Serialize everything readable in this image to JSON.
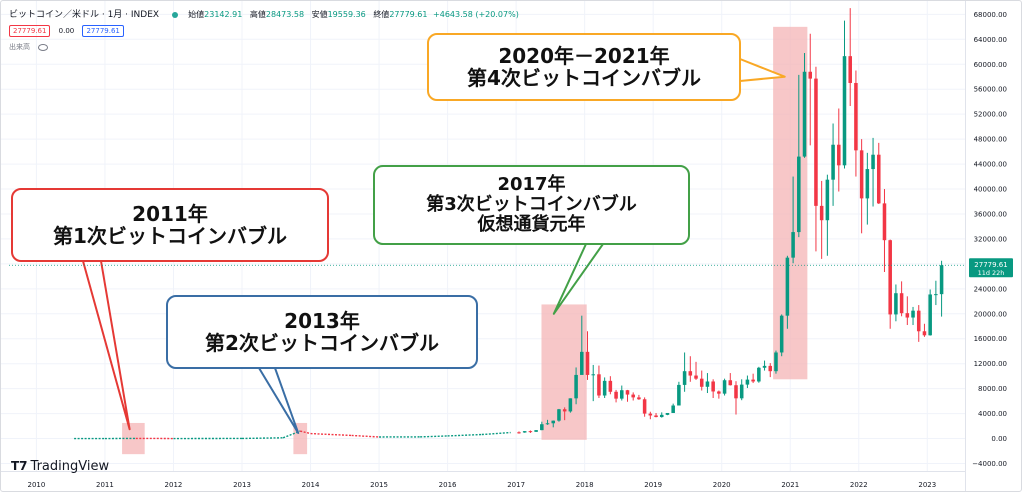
{
  "header": {
    "symbol": "ビットコイン／米ドル · 1月 · INDEX",
    "open_label": "始値",
    "open_value": "23142.91",
    "high_label": "高値",
    "high_value": "28473.58",
    "low_label": "安値",
    "low_value": "19559.36",
    "close_label": "終値",
    "close_value": "27779.61",
    "change": "+4643.58 (+20.07%)"
  },
  "price_row": {
    "bid": "27779.61",
    "spread": "0.00",
    "ask": "27779.61"
  },
  "volume_label": "出来高",
  "last_price": {
    "value": "27779.61",
    "countdown": "11d 22h"
  },
  "brand": "TradingView",
  "colors": {
    "up": "#089981",
    "down": "#f23645",
    "highlight": "#f4b4b6",
    "callout_2011": "#e53935",
    "callout_2013": "#3a6ea5",
    "callout_2017": "#43a047",
    "callout_2020": "#f9a825"
  },
  "callouts": [
    {
      "id": "2011",
      "lines": [
        "2011年",
        "第1次ビットコインバブル"
      ]
    },
    {
      "id": "2013",
      "lines": [
        "2013年",
        "第2次ビットコインバブル"
      ]
    },
    {
      "id": "2017",
      "lines": [
        "2017年",
        "第3次ビットコインバブル",
        "仮想通貨元年"
      ]
    },
    {
      "id": "2020",
      "lines": [
        "2020年－2021年",
        "第4次ビットコインバブル"
      ]
    }
  ],
  "chart_data": {
    "type": "candlestick",
    "interval": "1 month",
    "x_ticks": [
      "2010",
      "2011",
      "2012",
      "2013",
      "2014",
      "2015",
      "2016",
      "2017",
      "2018",
      "2019",
      "2020",
      "2021",
      "2022",
      "2023"
    ],
    "y_ticks": [
      "−4000.00",
      "0.00",
      "4000.00",
      "8000.00",
      "12000.00",
      "16000.00",
      "20000.00",
      "24000.00",
      "28000.00",
      "32000.00",
      "36000.00",
      "40000.00",
      "44000.00",
      "48000.00",
      "52000.00",
      "56000.00",
      "60000.00",
      "64000.00",
      "68000.00"
    ],
    "ylim": [
      -5200,
      69500
    ],
    "xlim": [
      2009.6,
      2023.55
    ],
    "highlights": [
      {
        "label": "2011",
        "x0": 2011.25,
        "x1": 2011.58,
        "y0": -2500,
        "y1": 2500
      },
      {
        "label": "2013",
        "x0": 2013.75,
        "x1": 2013.95,
        "y0": -2500,
        "y1": 2500
      },
      {
        "label": "2017",
        "x0": 2017.37,
        "x1": 2018.03,
        "y0": -200,
        "y1": 21500
      },
      {
        "label": "2020-2021",
        "x0": 2020.75,
        "x1": 2021.25,
        "y0": 9500,
        "y1": 66000
      }
    ],
    "candles": [
      {
        "t": "2017-01",
        "o": 1000,
        "h": 1150,
        "l": 780,
        "c": 970
      },
      {
        "t": "2017-02",
        "o": 970,
        "h": 1200,
        "l": 920,
        "c": 1190
      },
      {
        "t": "2017-03",
        "o": 1190,
        "h": 1300,
        "l": 890,
        "c": 1080
      },
      {
        "t": "2017-04",
        "o": 1080,
        "h": 1350,
        "l": 1070,
        "c": 1350
      },
      {
        "t": "2017-05",
        "o": 1350,
        "h": 2700,
        "l": 1340,
        "c": 2300
      },
      {
        "t": "2017-06",
        "o": 2300,
        "h": 3000,
        "l": 2200,
        "c": 2450
      },
      {
        "t": "2017-07",
        "o": 2450,
        "h": 2900,
        "l": 1800,
        "c": 2870
      },
      {
        "t": "2017-08",
        "o": 2870,
        "h": 4750,
        "l": 2700,
        "c": 4700
      },
      {
        "t": "2017-09",
        "o": 4700,
        "h": 5000,
        "l": 2950,
        "c": 4350
      },
      {
        "t": "2017-10",
        "o": 4350,
        "h": 6450,
        "l": 4150,
        "c": 6450
      },
      {
        "t": "2017-11",
        "o": 6450,
        "h": 11400,
        "l": 5500,
        "c": 10200
      },
      {
        "t": "2017-12",
        "o": 10200,
        "h": 19700,
        "l": 10800,
        "c": 13900
      },
      {
        "t": "2018-01",
        "o": 13900,
        "h": 17200,
        "l": 9400,
        "c": 10200
      },
      {
        "t": "2018-02",
        "o": 10200,
        "h": 11800,
        "l": 6000,
        "c": 10300
      },
      {
        "t": "2018-03",
        "o": 10300,
        "h": 11700,
        "l": 6500,
        "c": 6900
      },
      {
        "t": "2018-04",
        "o": 6900,
        "h": 9800,
        "l": 6500,
        "c": 9250
      },
      {
        "t": "2018-05",
        "o": 9250,
        "h": 10000,
        "l": 7100,
        "c": 7500
      },
      {
        "t": "2018-06",
        "o": 7500,
        "h": 7800,
        "l": 5800,
        "c": 6400
      },
      {
        "t": "2018-07",
        "o": 6400,
        "h": 8500,
        "l": 6100,
        "c": 7750
      },
      {
        "t": "2018-08",
        "o": 7750,
        "h": 7800,
        "l": 5900,
        "c": 7050
      },
      {
        "t": "2018-09",
        "o": 7050,
        "h": 7400,
        "l": 6100,
        "c": 6600
      },
      {
        "t": "2018-10",
        "o": 6600,
        "h": 7000,
        "l": 6200,
        "c": 6300
      },
      {
        "t": "2018-11",
        "o": 6300,
        "h": 6600,
        "l": 3500,
        "c": 4000
      },
      {
        "t": "2018-12",
        "o": 4000,
        "h": 4300,
        "l": 3100,
        "c": 3700
      },
      {
        "t": "2019-01",
        "o": 3700,
        "h": 4100,
        "l": 3400,
        "c": 3450
      },
      {
        "t": "2019-02",
        "o": 3450,
        "h": 4200,
        "l": 3350,
        "c": 3800
      },
      {
        "t": "2019-03",
        "o": 3800,
        "h": 4100,
        "l": 3750,
        "c": 4100
      },
      {
        "t": "2019-04",
        "o": 4100,
        "h": 5600,
        "l": 4100,
        "c": 5300
      },
      {
        "t": "2019-05",
        "o": 5300,
        "h": 9100,
        "l": 5300,
        "c": 8600
      },
      {
        "t": "2019-06",
        "o": 8600,
        "h": 13800,
        "l": 7500,
        "c": 10800
      },
      {
        "t": "2019-07",
        "o": 10800,
        "h": 13200,
        "l": 9100,
        "c": 10100
      },
      {
        "t": "2019-08",
        "o": 10100,
        "h": 12300,
        "l": 9400,
        "c": 9600
      },
      {
        "t": "2019-09",
        "o": 9600,
        "h": 10900,
        "l": 7700,
        "c": 8300
      },
      {
        "t": "2019-10",
        "o": 8300,
        "h": 10500,
        "l": 7300,
        "c": 9150
      },
      {
        "t": "2019-11",
        "o": 9150,
        "h": 9500,
        "l": 6500,
        "c": 7550
      },
      {
        "t": "2019-12",
        "o": 7550,
        "h": 7700,
        "l": 6400,
        "c": 7200
      },
      {
        "t": "2020-01",
        "o": 7200,
        "h": 9600,
        "l": 6900,
        "c": 9350
      },
      {
        "t": "2020-02",
        "o": 9350,
        "h": 10500,
        "l": 8500,
        "c": 8550
      },
      {
        "t": "2020-03",
        "o": 8550,
        "h": 9200,
        "l": 3850,
        "c": 6450
      },
      {
        "t": "2020-04",
        "o": 6450,
        "h": 9500,
        "l": 6150,
        "c": 8650
      },
      {
        "t": "2020-05",
        "o": 8650,
        "h": 10100,
        "l": 8100,
        "c": 9450
      },
      {
        "t": "2020-06",
        "o": 9450,
        "h": 10400,
        "l": 8900,
        "c": 9150
      },
      {
        "t": "2020-07",
        "o": 9150,
        "h": 11500,
        "l": 8950,
        "c": 11350
      },
      {
        "t": "2020-08",
        "o": 11350,
        "h": 12500,
        "l": 10900,
        "c": 11650
      },
      {
        "t": "2020-09",
        "o": 11650,
        "h": 12100,
        "l": 9850,
        "c": 10800
      },
      {
        "t": "2020-10",
        "o": 10800,
        "h": 14100,
        "l": 10400,
        "c": 13800
      },
      {
        "t": "2020-11",
        "o": 13800,
        "h": 19900,
        "l": 13200,
        "c": 19700
      },
      {
        "t": "2020-12",
        "o": 19700,
        "h": 29300,
        "l": 17600,
        "c": 29000
      },
      {
        "t": "2021-01",
        "o": 29000,
        "h": 42000,
        "l": 28100,
        "c": 33100
      },
      {
        "t": "2021-02",
        "o": 33100,
        "h": 58300,
        "l": 32300,
        "c": 45200
      },
      {
        "t": "2021-03",
        "o": 45200,
        "h": 61800,
        "l": 45000,
        "c": 58800
      },
      {
        "t": "2021-04",
        "o": 58800,
        "h": 64900,
        "l": 47000,
        "c": 57700
      },
      {
        "t": "2021-05",
        "o": 57700,
        "h": 59600,
        "l": 30000,
        "c": 37300
      },
      {
        "t": "2021-06",
        "o": 37300,
        "h": 41300,
        "l": 28800,
        "c": 35000
      },
      {
        "t": "2021-07",
        "o": 35000,
        "h": 42300,
        "l": 29300,
        "c": 41500
      },
      {
        "t": "2021-08",
        "o": 41500,
        "h": 50500,
        "l": 37300,
        "c": 47100
      },
      {
        "t": "2021-09",
        "o": 47100,
        "h": 52900,
        "l": 39600,
        "c": 43800
      },
      {
        "t": "2021-10",
        "o": 43800,
        "h": 67000,
        "l": 43300,
        "c": 61300
      },
      {
        "t": "2021-11",
        "o": 61300,
        "h": 69000,
        "l": 53300,
        "c": 57000
      },
      {
        "t": "2021-12",
        "o": 57000,
        "h": 59000,
        "l": 42000,
        "c": 46200
      },
      {
        "t": "2022-01",
        "o": 46200,
        "h": 48000,
        "l": 32900,
        "c": 38500
      },
      {
        "t": "2022-02",
        "o": 38500,
        "h": 45800,
        "l": 34300,
        "c": 43200
      },
      {
        "t": "2022-03",
        "o": 43200,
        "h": 48200,
        "l": 37200,
        "c": 45500
      },
      {
        "t": "2022-04",
        "o": 45500,
        "h": 47400,
        "l": 37600,
        "c": 37700
      },
      {
        "t": "2022-05",
        "o": 37700,
        "h": 40000,
        "l": 26700,
        "c": 31800
      },
      {
        "t": "2022-06",
        "o": 31800,
        "h": 31900,
        "l": 17600,
        "c": 19900
      },
      {
        "t": "2022-07",
        "o": 19900,
        "h": 24700,
        "l": 18800,
        "c": 23300
      },
      {
        "t": "2022-08",
        "o": 23300,
        "h": 25200,
        "l": 19600,
        "c": 20100
      },
      {
        "t": "2022-09",
        "o": 20100,
        "h": 22800,
        "l": 18200,
        "c": 19400
      },
      {
        "t": "2022-10",
        "o": 19400,
        "h": 21100,
        "l": 18200,
        "c": 20500
      },
      {
        "t": "2022-11",
        "o": 20500,
        "h": 21400,
        "l": 15500,
        "c": 17200
      },
      {
        "t": "2022-12",
        "o": 17200,
        "h": 18400,
        "l": 16300,
        "c": 16550
      },
      {
        "t": "2023-01",
        "o": 16550,
        "h": 23900,
        "l": 16500,
        "c": 23100
      },
      {
        "t": "2023-02",
        "o": 23100,
        "h": 25300,
        "l": 21400,
        "c": 23150
      },
      {
        "t": "2023-03",
        "o": 23150,
        "h": 28500,
        "l": 19550,
        "c": 27780
      }
    ],
    "early_line": [
      {
        "t": 2010.55,
        "v": 0
      },
      {
        "t": 2011.0,
        "v": 1
      },
      {
        "t": 2011.45,
        "v": 25
      },
      {
        "t": 2012.0,
        "v": 5
      },
      {
        "t": 2013.0,
        "v": 15
      },
      {
        "t": 2013.6,
        "v": 120
      },
      {
        "t": 2013.85,
        "v": 1200
      },
      {
        "t": 2014.0,
        "v": 800
      },
      {
        "t": 2014.6,
        "v": 500
      },
      {
        "t": 2015.0,
        "v": 250
      },
      {
        "t": 2015.6,
        "v": 270
      },
      {
        "t": 2016.0,
        "v": 420
      },
      {
        "t": 2016.5,
        "v": 650
      },
      {
        "t": 2016.92,
        "v": 960
      }
    ]
  }
}
